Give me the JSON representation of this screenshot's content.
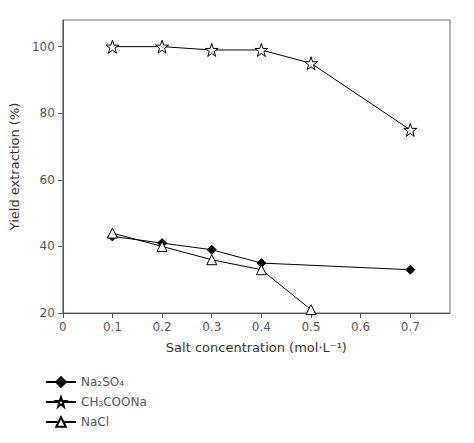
{
  "chart_data": {
    "type": "line",
    "xlabel": "Salt concentration (mol·L⁻¹)",
    "ylabel": "Yield extraction (%)",
    "xlim": [
      0,
      0.78
    ],
    "ylim": [
      20,
      108
    ],
    "xticks": [
      0,
      0.1,
      0.2,
      0.3,
      0.4,
      0.5,
      0.6,
      0.7
    ],
    "yticks": [
      20,
      40,
      60,
      80,
      100
    ],
    "grid": false,
    "legend": "below",
    "series": [
      {
        "name": "Na₂SO₄",
        "color": "#000000",
        "marker": "diamond",
        "x": [
          0.1,
          0.2,
          0.3,
          0.4,
          0.7
        ],
        "values": [
          43,
          41,
          39,
          35,
          33
        ]
      },
      {
        "name": "CH₃COONa",
        "color": "#000000",
        "marker": "star-open",
        "x": [
          0.1,
          0.2,
          0.3,
          0.4,
          0.5,
          0.7
        ],
        "values": [
          100,
          100,
          99,
          99,
          95,
          75
        ]
      },
      {
        "name": "NaCl",
        "color": "#000000",
        "marker": "triangle-open",
        "x": [
          0.1,
          0.2,
          0.3,
          0.4,
          0.5
        ],
        "values": [
          44,
          40,
          36,
          33,
          21
        ]
      }
    ]
  }
}
